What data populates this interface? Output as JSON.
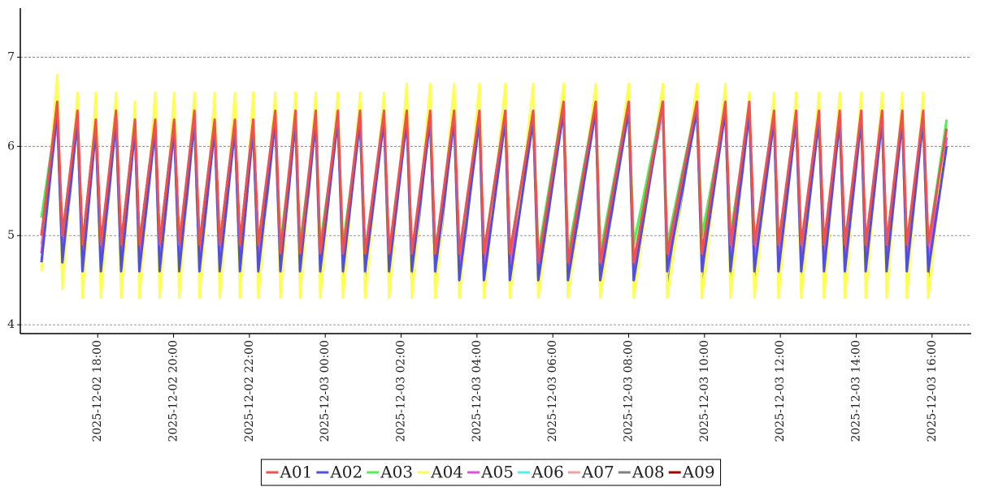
{
  "chart_data": {
    "type": "line",
    "x": [
      "2025-12-02 16:31",
      "2025-12-02 16:56",
      "2025-12-02 17:04",
      "2025-12-02 17:28",
      "2025-12-02 17:36",
      "2025-12-02 17:57",
      "2025-12-02 18:05",
      "2025-12-02 18:29",
      "2025-12-02 18:37",
      "2025-12-02 18:59",
      "2025-12-02 19:06",
      "2025-12-02 19:31",
      "2025-12-02 19:38",
      "2025-12-02 20:01",
      "2025-12-02 20:09",
      "2025-12-02 20:33",
      "2025-12-02 20:41",
      "2025-12-02 21:05",
      "2025-12-02 21:13",
      "2025-12-02 21:37",
      "2025-12-02 21:45",
      "2025-12-02 22:06",
      "2025-12-02 22:14",
      "2025-12-02 22:41",
      "2025-12-02 22:49",
      "2025-12-02 23:13",
      "2025-12-02 23:20",
      "2025-12-02 23:45",
      "2025-12-02 23:52",
      "2025-12-03 00:20",
      "2025-12-03 00:28",
      "2025-12-03 00:55",
      "2025-12-03 01:03",
      "2025-12-03 01:33",
      "2025-12-03 01:41",
      "2025-12-03 02:09",
      "2025-12-03 02:17",
      "2025-12-03 02:46",
      "2025-12-03 02:54",
      "2025-12-03 03:24",
      "2025-12-03 03:32",
      "2025-12-03 04:04",
      "2025-12-03 04:11",
      "2025-12-03 04:45",
      "2025-12-03 04:52",
      "2025-12-03 05:29",
      "2025-12-03 05:37",
      "2025-12-03 06:17",
      "2025-12-03 06:24",
      "2025-12-03 07:08",
      "2025-12-03 07:15",
      "2025-12-03 08:00",
      "2025-12-03 08:08",
      "2025-12-03 08:54",
      "2025-12-03 09:01",
      "2025-12-03 09:48",
      "2025-12-03 09:56",
      "2025-12-03 10:33",
      "2025-12-03 10:41",
      "2025-12-03 11:11",
      "2025-12-03 11:19",
      "2025-12-03 11:50",
      "2025-12-03 11:57",
      "2025-12-03 12:25",
      "2025-12-03 12:33",
      "2025-12-03 13:01",
      "2025-12-03 13:09",
      "2025-12-03 13:34",
      "2025-12-03 13:42",
      "2025-12-03 14:08",
      "2025-12-03 14:15",
      "2025-12-03 14:41",
      "2025-12-03 14:48",
      "2025-12-03 15:13",
      "2025-12-03 15:20",
      "2025-12-03 15:46",
      "2025-12-03 15:54",
      "2025-12-03 16:23"
    ],
    "series": [
      {
        "name": "A01",
        "color": "#f05050",
        "values": [
          5.0,
          6.5,
          5.0,
          6.4,
          4.9,
          6.3,
          4.9,
          6.4,
          4.9,
          6.3,
          4.9,
          6.3,
          4.9,
          6.3,
          4.9,
          6.4,
          4.9,
          6.3,
          4.9,
          6.3,
          4.9,
          6.3,
          4.9,
          6.4,
          4.8,
          6.4,
          4.8,
          6.4,
          4.8,
          6.4,
          4.8,
          6.4,
          4.8,
          6.4,
          4.8,
          6.4,
          4.8,
          6.4,
          4.8,
          6.4,
          4.8,
          6.4,
          4.8,
          6.4,
          4.8,
          6.4,
          4.7,
          6.5,
          4.7,
          6.5,
          4.7,
          6.5,
          4.7,
          6.5,
          4.8,
          6.5,
          4.8,
          6.5,
          4.9,
          6.5,
          4.9,
          6.4,
          4.9,
          6.4,
          4.9,
          6.4,
          4.9,
          6.4,
          4.9,
          6.4,
          4.9,
          6.4,
          4.9,
          6.4,
          4.9,
          6.4,
          4.9,
          6.2
        ]
      },
      {
        "name": "A02",
        "color": "#5050e0",
        "values": [
          4.7,
          6.4,
          4.7,
          6.3,
          4.6,
          6.2,
          4.6,
          6.3,
          4.6,
          6.2,
          4.6,
          6.2,
          4.6,
          6.2,
          4.6,
          6.3,
          4.6,
          6.2,
          4.6,
          6.2,
          4.6,
          6.2,
          4.6,
          6.3,
          4.6,
          6.3,
          4.6,
          6.3,
          4.6,
          6.3,
          4.6,
          6.3,
          4.6,
          6.3,
          4.6,
          6.3,
          4.6,
          6.3,
          4.6,
          6.3,
          4.5,
          6.3,
          4.5,
          6.3,
          4.5,
          6.3,
          4.5,
          6.4,
          4.5,
          6.4,
          4.5,
          6.4,
          4.5,
          6.5,
          4.6,
          6.4,
          4.6,
          6.4,
          4.6,
          6.4,
          4.6,
          6.3,
          4.6,
          6.3,
          4.6,
          6.3,
          4.6,
          6.3,
          4.6,
          6.3,
          4.6,
          6.3,
          4.6,
          6.3,
          4.6,
          6.3,
          4.6,
          6.0
        ]
      },
      {
        "name": "A03",
        "color": "#50f050",
        "values": [
          5.2,
          6.4,
          5.0,
          6.3,
          4.9,
          6.2,
          4.9,
          6.3,
          4.9,
          6.3,
          4.9,
          6.2,
          4.9,
          6.2,
          4.9,
          6.3,
          4.9,
          6.2,
          4.9,
          6.2,
          4.9,
          6.2,
          4.9,
          6.3,
          4.9,
          6.3,
          4.9,
          6.3,
          4.9,
          6.3,
          4.9,
          6.3,
          4.8,
          6.3,
          4.8,
          6.3,
          4.8,
          6.3,
          4.8,
          6.3,
          4.8,
          6.3,
          4.8,
          6.4,
          4.8,
          6.4,
          4.8,
          6.5,
          4.8,
          6.5,
          4.8,
          6.5,
          4.9,
          6.5,
          4.9,
          6.5,
          5.0,
          6.4,
          5.0,
          6.4,
          4.9,
          6.3,
          4.9,
          6.3,
          4.9,
          6.3,
          4.9,
          6.3,
          4.9,
          6.3,
          4.9,
          6.3,
          4.9,
          6.3,
          4.9,
          6.3,
          4.9,
          6.3
        ]
      },
      {
        "name": "A04",
        "color": "#ffff50",
        "values": [
          4.6,
          6.8,
          4.4,
          6.6,
          4.3,
          6.6,
          4.3,
          6.6,
          4.3,
          6.5,
          4.3,
          6.6,
          4.3,
          6.6,
          4.3,
          6.6,
          4.3,
          6.6,
          4.3,
          6.6,
          4.3,
          6.6,
          4.3,
          6.6,
          4.3,
          6.6,
          4.3,
          6.6,
          4.3,
          6.6,
          4.3,
          6.6,
          4.3,
          6.6,
          4.3,
          6.7,
          4.3,
          6.7,
          4.3,
          6.7,
          4.3,
          6.7,
          4.3,
          6.7,
          4.3,
          6.7,
          4.3,
          6.7,
          4.3,
          6.7,
          4.3,
          6.7,
          4.3,
          6.7,
          4.3,
          6.7,
          4.3,
          6.7,
          4.3,
          6.6,
          4.3,
          6.6,
          4.3,
          6.6,
          4.3,
          6.6,
          4.3,
          6.6,
          4.3,
          6.6,
          4.3,
          6.6,
          4.3,
          6.6,
          4.3,
          6.6,
          4.3,
          6.3
        ]
      },
      {
        "name": "A05",
        "color": "#e050e0",
        "values": [
          4.8,
          6.4,
          4.8,
          6.3,
          4.7,
          6.2,
          4.7,
          6.3,
          4.7,
          6.2,
          4.7,
          6.2,
          4.7,
          6.2,
          4.7,
          6.3,
          4.7,
          6.2,
          4.7,
          6.2,
          4.7,
          6.2,
          4.7,
          6.3,
          4.7,
          6.3,
          4.7,
          6.3,
          4.7,
          6.3,
          4.7,
          6.3,
          4.7,
          6.3,
          4.7,
          6.3,
          4.7,
          6.3,
          4.7,
          6.3,
          4.7,
          6.3,
          4.7,
          6.3,
          4.7,
          6.3,
          4.6,
          6.4,
          4.6,
          6.4,
          4.6,
          6.4,
          4.6,
          6.5,
          4.7,
          6.4,
          4.7,
          6.4,
          4.7,
          6.4,
          4.7,
          6.3,
          4.7,
          6.3,
          4.7,
          6.3,
          4.7,
          6.3,
          4.7,
          6.3,
          4.7,
          6.3,
          4.7,
          6.3,
          4.7,
          6.3,
          4.7,
          6.1
        ]
      },
      {
        "name": "A06",
        "color": "#50f0f0",
        "values": [
          5.2,
          6.4,
          4.9,
          6.3,
          4.8,
          6.2,
          4.8,
          6.3,
          4.8,
          6.2,
          4.8,
          6.2,
          4.8,
          6.2,
          4.8,
          6.3,
          4.8,
          6.2,
          4.8,
          6.2,
          4.8,
          6.2,
          4.8,
          6.3,
          4.8,
          6.3,
          4.8,
          6.3,
          4.8,
          6.3,
          4.8,
          6.3,
          4.8,
          6.3,
          4.8,
          6.3,
          4.8,
          6.3,
          4.8,
          6.3,
          4.8,
          6.3,
          4.8,
          6.4,
          4.8,
          6.4,
          4.8,
          6.5,
          4.8,
          6.5,
          4.8,
          6.5,
          4.9,
          6.5,
          4.9,
          6.5,
          5.0,
          6.4,
          5.0,
          6.4,
          4.9,
          6.3,
          4.8,
          6.3,
          4.8,
          6.3,
          4.8,
          6.3,
          4.8,
          6.3,
          4.8,
          6.3,
          4.8,
          6.3,
          4.8,
          6.3,
          4.8,
          6.2
        ]
      },
      {
        "name": "A07",
        "color": "#f0a0a0",
        "values": [
          4.9,
          6.3,
          4.9,
          6.3,
          4.8,
          6.2,
          4.8,
          6.3,
          4.8,
          6.2,
          4.8,
          6.2,
          4.8,
          6.2,
          4.8,
          6.3,
          4.8,
          6.2,
          4.8,
          6.2,
          4.8,
          6.2,
          4.8,
          6.3,
          4.8,
          6.3,
          4.8,
          6.3,
          4.8,
          6.3,
          4.8,
          6.3,
          4.8,
          6.3,
          4.8,
          6.3,
          4.8,
          6.3,
          4.8,
          6.3,
          4.8,
          6.3,
          4.8,
          6.3,
          4.8,
          6.3,
          4.7,
          6.4,
          4.7,
          6.4,
          4.7,
          6.4,
          4.7,
          6.4,
          4.8,
          6.4,
          4.8,
          6.4,
          4.8,
          6.4,
          4.8,
          6.3,
          4.8,
          6.3,
          4.8,
          6.3,
          4.8,
          6.3,
          4.8,
          6.3,
          4.8,
          6.3,
          4.8,
          6.3,
          4.8,
          6.3,
          4.8,
          6.1
        ]
      },
      {
        "name": "A08",
        "color": "#808080",
        "values": [
          4.8,
          6.4,
          4.6,
          6.3,
          4.6,
          6.3,
          4.5,
          6.3,
          4.5,
          6.3,
          4.5,
          6.3,
          4.5,
          6.3,
          4.5,
          6.3,
          4.5,
          6.3,
          4.5,
          6.3,
          4.5,
          6.3,
          4.5,
          6.3,
          4.5,
          6.3,
          4.5,
          6.3,
          4.5,
          6.4,
          4.5,
          6.4,
          4.5,
          6.4,
          4.5,
          6.4,
          4.4,
          6.4,
          4.4,
          6.4,
          4.4,
          6.4,
          4.5,
          6.4,
          4.5,
          6.4,
          4.4,
          6.5,
          4.4,
          6.5,
          4.4,
          6.5,
          4.4,
          6.6,
          4.4,
          6.5,
          4.5,
          6.5,
          4.5,
          6.4,
          4.5,
          6.4,
          4.5,
          6.4,
          4.5,
          6.4,
          4.5,
          6.4,
          4.5,
          6.4,
          4.5,
          6.4,
          4.5,
          6.4,
          4.5,
          6.4,
          4.5,
          6.1
        ]
      },
      {
        "name": "A09",
        "color": "#a00000",
        "values": [
          5.0,
          6.4,
          5.0,
          6.3,
          4.9,
          6.3,
          4.9,
          6.3,
          4.9,
          6.3,
          4.9,
          6.3,
          4.9,
          6.3,
          4.9,
          6.3,
          4.9,
          6.3,
          4.9,
          6.3,
          4.9,
          6.3,
          4.9,
          6.3,
          4.8,
          6.3,
          4.8,
          6.3,
          4.8,
          6.3,
          4.8,
          6.3,
          4.8,
          6.3,
          4.8,
          6.3,
          4.8,
          6.3,
          4.8,
          6.3,
          4.8,
          6.3,
          4.8,
          6.4,
          4.8,
          6.4,
          4.7,
          6.4,
          4.7,
          6.4,
          4.7,
          6.4,
          4.7,
          6.4,
          4.8,
          6.4,
          4.8,
          6.4,
          4.9,
          6.4,
          4.9,
          6.3,
          4.9,
          6.3,
          4.9,
          6.3,
          4.9,
          6.3,
          4.9,
          6.3,
          4.9,
          6.3,
          4.9,
          6.3,
          4.9,
          6.3,
          4.9,
          6.2
        ]
      }
    ],
    "xlim": [
      "2025-12-02 16:04",
      "2025-12-03 17:02"
    ],
    "xticks": [
      "2025-12-02 18:00",
      "2025-12-02 20:00",
      "2025-12-02 22:00",
      "2025-12-03 00:00",
      "2025-12-03 02:00",
      "2025-12-03 04:00",
      "2025-12-03 06:00",
      "2025-12-03 08:00",
      "2025-12-03 10:00",
      "2025-12-03 12:00",
      "2025-12-03 14:00",
      "2025-12-03 16:00"
    ],
    "ylim": [
      3.91,
      7.55
    ],
    "yticks": [
      4,
      5,
      6,
      7
    ],
    "grid": true,
    "legend": "bottom"
  }
}
